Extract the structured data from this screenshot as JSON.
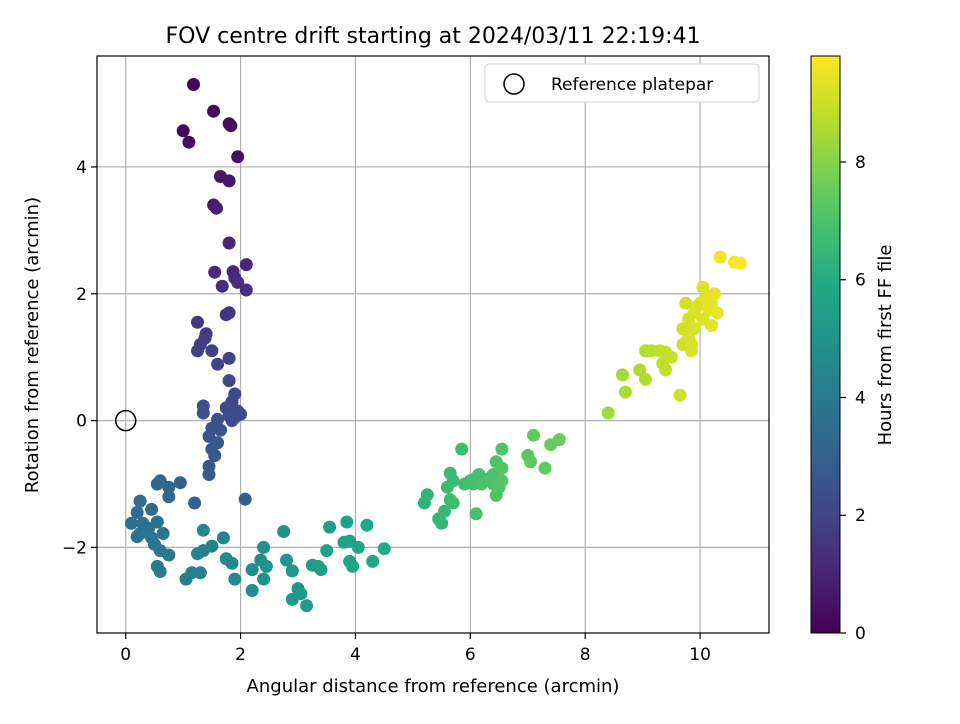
{
  "chart_data": {
    "type": "scatter",
    "title": "FOV centre drift starting at 2024/03/11 22:19:41",
    "xlabel": "Angular distance from reference (arcmin)",
    "ylabel": "Rotation from reference (arcmin)",
    "colorbar_label": "Hours from first FF file",
    "xlim": [
      -0.5,
      11.2
    ],
    "ylim": [
      -3.35,
      5.75
    ],
    "clim": [
      0,
      9.8
    ],
    "xticks": [
      0,
      2,
      4,
      6,
      8,
      10
    ],
    "yticks": [
      -2,
      0,
      2,
      4
    ],
    "cticks": [
      0,
      2,
      4,
      6,
      8
    ],
    "grid": true,
    "legend": {
      "location": "upper-right",
      "label": "Reference platepar"
    },
    "reference_point": {
      "x": 0,
      "y": 0
    },
    "points": [
      [
        1.18,
        5.3,
        0.1
      ],
      [
        1.53,
        4.88,
        0.2
      ],
      [
        1.8,
        4.68,
        0.3
      ],
      [
        1.83,
        4.65,
        0.35
      ],
      [
        1.0,
        4.57,
        0.25
      ],
      [
        1.1,
        4.39,
        0.3
      ],
      [
        1.95,
        4.16,
        0.45
      ],
      [
        1.65,
        3.85,
        0.6
      ],
      [
        1.8,
        3.78,
        0.65
      ],
      [
        1.53,
        3.4,
        0.8
      ],
      [
        1.58,
        3.35,
        0.85
      ],
      [
        1.8,
        2.8,
        1.0
      ],
      [
        2.1,
        2.46,
        1.05
      ],
      [
        1.87,
        2.35,
        1.1
      ],
      [
        1.55,
        2.34,
        1.15
      ],
      [
        1.9,
        2.25,
        1.2
      ],
      [
        1.95,
        2.18,
        1.25
      ],
      [
        1.68,
        2.12,
        1.3
      ],
      [
        2.1,
        2.06,
        1.35
      ],
      [
        1.75,
        1.67,
        1.45
      ],
      [
        1.8,
        1.7,
        1.5
      ],
      [
        1.25,
        1.55,
        1.6
      ],
      [
        1.4,
        1.37,
        1.7
      ],
      [
        1.38,
        1.3,
        1.75
      ],
      [
        1.3,
        1.2,
        1.8
      ],
      [
        1.25,
        1.1,
        1.85
      ],
      [
        1.5,
        1.1,
        1.9
      ],
      [
        1.8,
        0.98,
        1.95
      ],
      [
        1.6,
        0.89,
        2.0
      ],
      [
        1.8,
        0.63,
        2.05
      ],
      [
        1.9,
        0.42,
        2.1
      ],
      [
        1.85,
        0.3,
        2.12
      ],
      [
        1.75,
        0.2,
        2.15
      ],
      [
        1.95,
        0.15,
        2.2
      ],
      [
        2.0,
        0.1,
        2.22
      ],
      [
        1.9,
        0.05,
        2.25
      ],
      [
        1.8,
        0.08,
        2.28
      ],
      [
        1.85,
        0.0,
        2.3
      ],
      [
        1.35,
        0.23,
        2.35
      ],
      [
        1.35,
        0.12,
        2.38
      ],
      [
        1.6,
        0.02,
        2.4
      ],
      [
        1.5,
        -0.12,
        2.45
      ],
      [
        1.65,
        -0.15,
        2.5
      ],
      [
        1.45,
        -0.25,
        2.55
      ],
      [
        1.6,
        -0.35,
        2.6
      ],
      [
        1.5,
        -0.45,
        2.65
      ],
      [
        1.55,
        -0.55,
        2.7
      ],
      [
        1.45,
        -0.72,
        2.75
      ],
      [
        1.45,
        -0.85,
        2.8
      ],
      [
        2.08,
        -1.24,
        2.9
      ],
      [
        1.2,
        -1.3,
        3.0
      ],
      [
        0.95,
        -0.98,
        3.1
      ],
      [
        0.75,
        -1.05,
        3.15
      ],
      [
        0.6,
        -0.95,
        3.2
      ],
      [
        0.55,
        -1.0,
        3.25
      ],
      [
        0.75,
        -1.2,
        3.3
      ],
      [
        0.45,
        -1.4,
        3.4
      ],
      [
        0.25,
        -1.27,
        3.45
      ],
      [
        0.2,
        -1.45,
        3.5
      ],
      [
        0.1,
        -1.62,
        3.55
      ],
      [
        0.3,
        -1.62,
        3.6
      ],
      [
        0.4,
        -1.7,
        3.65
      ],
      [
        0.55,
        -1.6,
        3.7
      ],
      [
        0.25,
        -1.78,
        3.72
      ],
      [
        0.2,
        -1.83,
        3.75
      ],
      [
        0.45,
        -1.85,
        3.8
      ],
      [
        0.65,
        -1.78,
        3.82
      ],
      [
        0.5,
        -1.95,
        3.85
      ],
      [
        0.6,
        -2.05,
        3.9
      ],
      [
        0.75,
        -2.12,
        3.95
      ],
      [
        0.55,
        -2.3,
        4.0
      ],
      [
        0.6,
        -2.38,
        4.05
      ],
      [
        1.05,
        -2.5,
        4.15
      ],
      [
        1.15,
        -2.4,
        4.2
      ],
      [
        1.3,
        -2.4,
        4.25
      ],
      [
        1.25,
        -2.1,
        4.3
      ],
      [
        1.35,
        -2.05,
        4.35
      ],
      [
        1.5,
        -1.98,
        4.4
      ],
      [
        1.35,
        -1.73,
        4.45
      ],
      [
        1.7,
        -1.85,
        4.5
      ],
      [
        1.75,
        -2.18,
        4.55
      ],
      [
        1.85,
        -2.25,
        4.6
      ],
      [
        1.9,
        -2.5,
        4.65
      ],
      [
        2.2,
        -2.35,
        4.7
      ],
      [
        2.2,
        -2.68,
        4.75
      ],
      [
        2.35,
        -2.2,
        4.8
      ],
      [
        2.4,
        -2.0,
        4.85
      ],
      [
        2.45,
        -2.3,
        4.9
      ],
      [
        2.4,
        -2.5,
        4.95
      ],
      [
        2.75,
        -1.75,
        5.0
      ],
      [
        2.8,
        -2.2,
        5.05
      ],
      [
        2.9,
        -2.37,
        5.1
      ],
      [
        2.9,
        -2.82,
        5.15
      ],
      [
        3.0,
        -2.65,
        5.2
      ],
      [
        3.05,
        -2.73,
        5.25
      ],
      [
        3.15,
        -2.92,
        5.3
      ],
      [
        3.25,
        -2.28,
        5.35
      ],
      [
        3.35,
        -2.3,
        5.4
      ],
      [
        3.4,
        -2.35,
        5.45
      ],
      [
        3.5,
        -2.05,
        5.5
      ],
      [
        3.55,
        -1.68,
        5.55
      ],
      [
        3.8,
        -1.92,
        5.6
      ],
      [
        3.85,
        -1.6,
        5.62
      ],
      [
        3.9,
        -1.9,
        5.65
      ],
      [
        3.9,
        -2.22,
        5.7
      ],
      [
        3.95,
        -2.3,
        5.72
      ],
      [
        4.05,
        -2.0,
        5.75
      ],
      [
        4.2,
        -1.65,
        5.8
      ],
      [
        4.3,
        -2.22,
        5.85
      ],
      [
        4.5,
        -2.02,
        5.9
      ],
      [
        5.2,
        -1.3,
        6.3
      ],
      [
        5.25,
        -1.17,
        6.35
      ],
      [
        5.45,
        -1.55,
        6.4
      ],
      [
        5.5,
        -1.62,
        6.45
      ],
      [
        5.55,
        -1.43,
        6.5
      ],
      [
        5.6,
        -1.05,
        6.55
      ],
      [
        5.65,
        -0.83,
        6.6
      ],
      [
        5.7,
        -0.95,
        6.65
      ],
      [
        5.65,
        -1.25,
        6.7
      ],
      [
        5.7,
        -1.3,
        6.72
      ],
      [
        5.85,
        -0.45,
        6.75
      ],
      [
        5.9,
        -1.0,
        6.8
      ],
      [
        6.0,
        -0.95,
        6.82
      ],
      [
        6.05,
        -1.0,
        6.85
      ],
      [
        6.1,
        -0.9,
        6.88
      ],
      [
        6.1,
        -1.47,
        6.9
      ],
      [
        6.15,
        -0.85,
        6.92
      ],
      [
        6.2,
        -1.0,
        6.95
      ],
      [
        6.3,
        -0.92,
        6.98
      ],
      [
        6.4,
        -0.85,
        7.0
      ],
      [
        6.45,
        -0.65,
        7.02
      ],
      [
        6.4,
        -1.0,
        7.05
      ],
      [
        6.45,
        -1.18,
        7.08
      ],
      [
        6.5,
        -1.05,
        7.1
      ],
      [
        6.55,
        -0.45,
        7.12
      ],
      [
        6.55,
        -0.75,
        7.15
      ],
      [
        6.55,
        -0.95,
        7.18
      ],
      [
        7.0,
        -0.55,
        7.3
      ],
      [
        7.05,
        -0.65,
        7.35
      ],
      [
        7.1,
        -0.23,
        7.4
      ],
      [
        7.3,
        -0.75,
        7.45
      ],
      [
        7.4,
        -0.38,
        7.5
      ],
      [
        7.55,
        -0.3,
        7.55
      ],
      [
        8.4,
        0.12,
        8.4
      ],
      [
        8.65,
        0.72,
        8.5
      ],
      [
        8.7,
        0.45,
        8.55
      ],
      [
        8.95,
        0.8,
        8.6
      ],
      [
        9.05,
        0.65,
        8.65
      ],
      [
        9.05,
        1.1,
        8.7
      ],
      [
        9.15,
        1.1,
        8.75
      ],
      [
        9.3,
        1.1,
        8.8
      ],
      [
        9.35,
        0.9,
        8.85
      ],
      [
        9.4,
        0.8,
        8.9
      ],
      [
        9.4,
        1.08,
        8.92
      ],
      [
        9.5,
        1.0,
        8.95
      ],
      [
        9.65,
        0.4,
        9.0
      ],
      [
        9.7,
        1.2,
        9.05
      ],
      [
        9.7,
        1.45,
        9.08
      ],
      [
        9.75,
        1.85,
        9.1
      ],
      [
        9.8,
        1.6,
        9.12
      ],
      [
        9.8,
        1.3,
        9.15
      ],
      [
        9.85,
        1.2,
        9.18
      ],
      [
        9.85,
        1.1,
        9.2
      ],
      [
        9.9,
        1.7,
        9.22
      ],
      [
        9.9,
        1.45,
        9.25
      ],
      [
        9.95,
        1.8,
        9.28
      ],
      [
        10.0,
        1.85,
        9.3
      ],
      [
        10.05,
        1.6,
        9.32
      ],
      [
        10.05,
        2.1,
        9.35
      ],
      [
        10.1,
        1.95,
        9.38
      ],
      [
        10.15,
        1.75,
        9.4
      ],
      [
        10.2,
        1.5,
        9.42
      ],
      [
        10.2,
        1.85,
        9.45
      ],
      [
        10.25,
        2.0,
        9.48
      ],
      [
        10.3,
        1.7,
        9.5
      ],
      [
        10.35,
        2.58,
        9.6
      ],
      [
        10.6,
        2.5,
        9.7
      ],
      [
        10.7,
        2.48,
        9.75
      ]
    ]
  }
}
